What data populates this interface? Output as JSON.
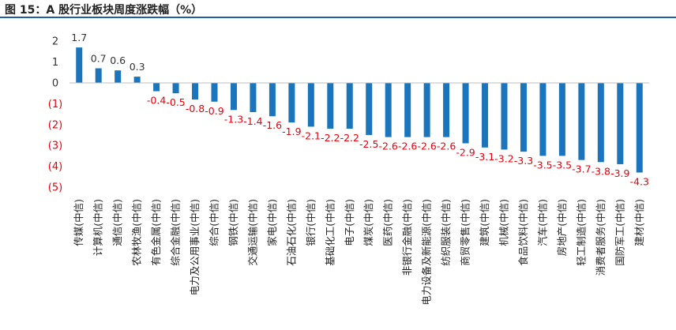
{
  "figure_title": "图 15：A 股行业板块周度涨跌幅（%）",
  "colors": {
    "bar": "#1a75bc",
    "positive_label": "#333333",
    "negative_label": "#e8000b",
    "axis": "#bfbfbf",
    "title_rule": "#1f5fa8"
  },
  "chart_data": {
    "type": "bar",
    "title": "",
    "xlabel": "",
    "ylabel": "",
    "ylim": [
      -5,
      2
    ],
    "yticks": [
      2,
      1,
      0,
      -1,
      -2,
      -3,
      -4,
      -5
    ],
    "ytick_labels": [
      "2",
      "1",
      "0",
      "(1)",
      "(2)",
      "(3)",
      "(4)",
      "(5)"
    ],
    "grid": false,
    "legend": "none",
    "categories": [
      "传媒(中信)",
      "计算机(中信)",
      "通信(中信)",
      "农林牧渔(中信)",
      "有色金属(中信)",
      "综合金融(中信)",
      "电力及公用事业(中信)",
      "综合(中信)",
      "钢铁(中信)",
      "交通运输(中信)",
      "家电(中信)",
      "石油石化(中信)",
      "银行(中信)",
      "基础化工(中信)",
      "电子(中信)",
      "煤炭(中信)",
      "医药(中信)",
      "非银行金融(中信)",
      "电力设备及新能源(中信)",
      "纺织服装(中信)",
      "商贸零售(中信)",
      "建筑(中信)",
      "机械(中信)",
      "食品饮料(中信)",
      "汽车(中信)",
      "房地产(中信)",
      "轻工制造(中信)",
      "消费者服务(中信)",
      "国防军工(中信)",
      "建材(中信)"
    ],
    "values": [
      1.7,
      0.7,
      0.6,
      0.3,
      -0.4,
      -0.5,
      -0.8,
      -0.9,
      -1.3,
      -1.4,
      -1.6,
      -1.9,
      -2.1,
      -2.2,
      -2.2,
      -2.5,
      -2.6,
      -2.6,
      -2.6,
      -2.6,
      -2.9,
      -3.1,
      -3.2,
      -3.3,
      -3.5,
      -3.5,
      -3.7,
      -3.8,
      -3.9,
      -4.3
    ]
  }
}
